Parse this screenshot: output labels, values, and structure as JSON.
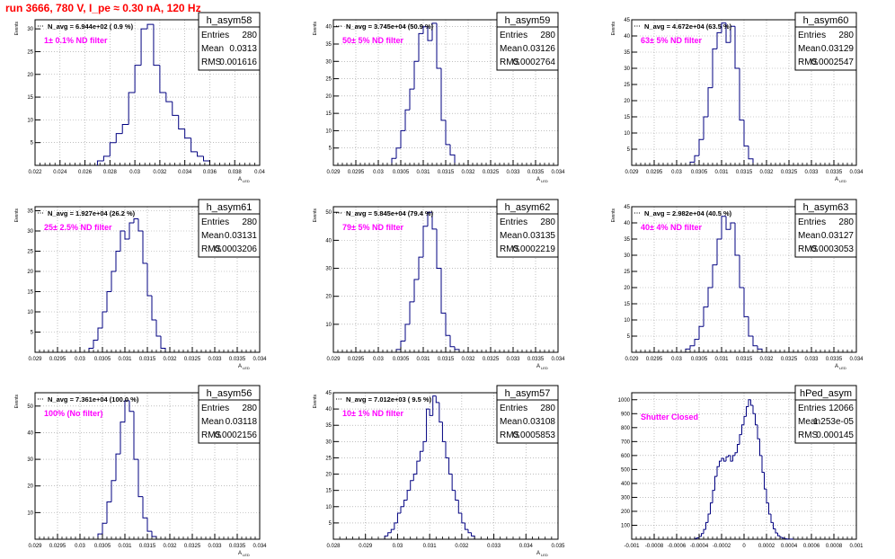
{
  "figure_title": "run 3666,   780 V, I_pe ≈ 0.30 nA, 120 Hz",
  "colors": {
    "title": "#ff0000",
    "histogram": "#000080",
    "annotation": "#ff00ff",
    "axes": "#000000",
    "grid": "#999999"
  },
  "chart_data": [
    {
      "type": "bar",
      "name": "h_asym58",
      "stats": {
        "entries_label": "Entries",
        "entries": "280",
        "mean_label": "Mean",
        "mean": "0.0313",
        "rms_label": "RMS",
        "rms": "0.001616"
      },
      "navg": "N_avg = 6.944e+02 ( 0.9 %)",
      "filter": "1± 0.1% ND filter",
      "ylabel": "Events",
      "xlabel": "A",
      "xlabel_sub": "LED",
      "grid": true,
      "xlim": [
        0.022,
        0.04
      ],
      "ylim": [
        0,
        32
      ],
      "xticks": [
        0.022,
        0.024,
        0.026,
        0.028,
        0.03,
        0.032,
        0.034,
        0.036,
        0.038,
        0.04
      ],
      "xtick_labels": [
        "0.022",
        "0.024",
        "0.026",
        "0.028",
        "0.03",
        "0.032",
        "0.034",
        "0.036",
        "0.038",
        "0.04"
      ],
      "yticks": [
        5,
        10,
        15,
        20,
        25,
        30
      ],
      "ytick_labels": [
        "5",
        "10",
        "15",
        "20",
        "25",
        "30"
      ],
      "bin_edges": [
        0.027,
        0.0275,
        0.028,
        0.0285,
        0.029,
        0.0295,
        0.03,
        0.0305,
        0.031,
        0.0315,
        0.032,
        0.0325,
        0.033,
        0.0335,
        0.034,
        0.0345,
        0.035,
        0.0355,
        0.036
      ],
      "counts": [
        1,
        2,
        5,
        7,
        9,
        16,
        22,
        30,
        31,
        22,
        16,
        14,
        11,
        8,
        6,
        3,
        2,
        1
      ]
    },
    {
      "type": "bar",
      "name": "h_asym59",
      "stats": {
        "entries_label": "Entries",
        "entries": "280",
        "mean_label": "Mean",
        "mean": "0.03126",
        "rms_label": "RMS",
        "rms": "0.0002764"
      },
      "navg": "N_avg = 3.745e+04 (50.9 %)",
      "filter": "50± 5% ND filter",
      "ylabel": "Events",
      "xlabel": "A",
      "xlabel_sub": "LED",
      "grid": true,
      "xlim": [
        0.029,
        0.034
      ],
      "ylim": [
        0,
        42
      ],
      "xticks": [
        0.029,
        0.0295,
        0.03,
        0.0305,
        0.031,
        0.0315,
        0.032,
        0.0325,
        0.033,
        0.0335,
        0.034
      ],
      "xtick_labels": [
        "0.029",
        "0.0295",
        "0.03",
        "0.0305",
        "0.031",
        "0.0315",
        "0.032",
        "0.0325",
        "0.033",
        "0.0335",
        "0.034"
      ],
      "yticks": [
        5,
        10,
        15,
        20,
        25,
        30,
        35,
        40
      ],
      "ytick_labels": [
        "5",
        "10",
        "15",
        "20",
        "25",
        "30",
        "35",
        "40"
      ],
      "bin_edges": [
        0.0303,
        0.0304,
        0.0305,
        0.0306,
        0.0307,
        0.0308,
        0.0309,
        0.031,
        0.0311,
        0.0312,
        0.0313,
        0.0314,
        0.0315,
        0.0316,
        0.0317
      ],
      "counts": [
        2,
        5,
        10,
        16,
        22,
        30,
        38,
        40,
        36,
        41,
        28,
        13,
        6,
        3
      ]
    },
    {
      "type": "bar",
      "name": "h_asym60",
      "stats": {
        "entries_label": "Entries",
        "entries": "280",
        "mean_label": "Mean",
        "mean": "0.03129",
        "rms_label": "RMS",
        "rms": "0.0002547"
      },
      "navg": "N_avg = 4.672e+04 (63.5 %)",
      "filter": "63± 5% ND filter",
      "ylabel": "Events",
      "xlabel": "A",
      "xlabel_sub": "LED",
      "grid": true,
      "xlim": [
        0.029,
        0.034
      ],
      "ylim": [
        0,
        45
      ],
      "xticks": [
        0.029,
        0.0295,
        0.03,
        0.0305,
        0.031,
        0.0315,
        0.032,
        0.0325,
        0.033,
        0.0335,
        0.034
      ],
      "xtick_labels": [
        "0.029",
        "0.0295",
        "0.03",
        "0.0305",
        "0.031",
        "0.0315",
        "0.032",
        "0.0325",
        "0.033",
        "0.0335",
        "0.034"
      ],
      "yticks": [
        5,
        10,
        15,
        20,
        25,
        30,
        35,
        40,
        45
      ],
      "ytick_labels": [
        "5",
        "10",
        "15",
        "20",
        "25",
        "30",
        "35",
        "40",
        "45"
      ],
      "bin_edges": [
        0.0303,
        0.0304,
        0.0305,
        0.0306,
        0.0307,
        0.0308,
        0.0309,
        0.031,
        0.0311,
        0.0312,
        0.0313,
        0.0314,
        0.0315,
        0.0316,
        0.0317
      ],
      "counts": [
        1,
        3,
        8,
        15,
        24,
        36,
        41,
        44,
        38,
        43,
        30,
        14,
        6,
        2
      ]
    },
    {
      "type": "bar",
      "name": "h_asym61",
      "stats": {
        "entries_label": "Entries",
        "entries": "280",
        "mean_label": "Mean",
        "mean": "0.03131",
        "rms_label": "RMS",
        "rms": "0.0003206"
      },
      "navg": "N_avg = 1.927e+04 (26.2 %)",
      "filter": "25± 2.5% ND filter",
      "ylabel": "Events",
      "xlabel": "A",
      "xlabel_sub": "LED",
      "grid": true,
      "xlim": [
        0.029,
        0.034
      ],
      "ylim": [
        0,
        36
      ],
      "xticks": [
        0.029,
        0.0295,
        0.03,
        0.0305,
        0.031,
        0.0315,
        0.032,
        0.0325,
        0.033,
        0.0335,
        0.034
      ],
      "xtick_labels": [
        "0.029",
        "0.0295",
        "0.03",
        "0.0305",
        "0.031",
        "0.0315",
        "0.032",
        "0.0325",
        "0.033",
        "0.0335",
        "0.034"
      ],
      "yticks": [
        5,
        10,
        15,
        20,
        25,
        30,
        35
      ],
      "ytick_labels": [
        "5",
        "10",
        "15",
        "20",
        "25",
        "30",
        "35"
      ],
      "bin_edges": [
        0.0302,
        0.0303,
        0.0304,
        0.0305,
        0.0306,
        0.0307,
        0.0308,
        0.0309,
        0.031,
        0.0311,
        0.0312,
        0.0313,
        0.0314,
        0.0315,
        0.0316,
        0.0317,
        0.0318,
        0.0319
      ],
      "counts": [
        1,
        3,
        6,
        10,
        15,
        20,
        25,
        30,
        28,
        32,
        33,
        30,
        22,
        14,
        8,
        4,
        1
      ]
    },
    {
      "type": "bar",
      "name": "h_asym62",
      "stats": {
        "entries_label": "Entries",
        "entries": "280",
        "mean_label": "Mean",
        "mean": "0.03135",
        "rms_label": "RMS",
        "rms": "0.0002219"
      },
      "navg": "N_avg = 5.845e+04 (79.4 %)",
      "filter": "79± 5% ND filter",
      "ylabel": "Events",
      "xlabel": "A",
      "xlabel_sub": "LED",
      "grid": true,
      "xlim": [
        0.029,
        0.034
      ],
      "ylim": [
        0,
        52
      ],
      "xticks": [
        0.029,
        0.0295,
        0.03,
        0.0305,
        0.031,
        0.0315,
        0.032,
        0.0325,
        0.033,
        0.0335,
        0.034
      ],
      "xtick_labels": [
        "0.029",
        "0.0295",
        "0.03",
        "0.0305",
        "0.031",
        "0.0315",
        "0.032",
        "0.0325",
        "0.033",
        "0.0335",
        "0.034"
      ],
      "yticks": [
        10,
        20,
        30,
        40,
        50
      ],
      "ytick_labels": [
        "10",
        "20",
        "30",
        "40",
        "50"
      ],
      "bin_edges": [
        0.0304,
        0.0305,
        0.0306,
        0.0307,
        0.0308,
        0.0309,
        0.031,
        0.0311,
        0.0312,
        0.0313,
        0.0314,
        0.0315,
        0.0316,
        0.0317,
        0.0318
      ],
      "counts": [
        1,
        4,
        10,
        18,
        26,
        34,
        45,
        50,
        44,
        30,
        14,
        6,
        2,
        1
      ]
    },
    {
      "type": "bar",
      "name": "h_asym63",
      "stats": {
        "entries_label": "Entries",
        "entries": "280",
        "mean_label": "Mean",
        "mean": "0.03127",
        "rms_label": "RMS",
        "rms": "0.0003053"
      },
      "navg": "N_avg = 2.982e+04 (40.5 %)",
      "filter": "40± 4% ND filter",
      "ylabel": "Events",
      "xlabel": "A",
      "xlabel_sub": "LED",
      "grid": true,
      "xlim": [
        0.029,
        0.034
      ],
      "ylim": [
        0,
        45
      ],
      "xticks": [
        0.029,
        0.0295,
        0.03,
        0.0305,
        0.031,
        0.0315,
        0.032,
        0.0325,
        0.033,
        0.0335,
        0.034
      ],
      "xtick_labels": [
        "0.029",
        "0.0295",
        "0.03",
        "0.0305",
        "0.031",
        "0.0315",
        "0.032",
        "0.0325",
        "0.033",
        "0.0335",
        "0.034"
      ],
      "yticks": [
        5,
        10,
        15,
        20,
        25,
        30,
        35,
        40,
        45
      ],
      "ytick_labels": [
        "5",
        "10",
        "15",
        "20",
        "25",
        "30",
        "35",
        "40",
        "45"
      ],
      "bin_edges": [
        0.0302,
        0.0303,
        0.0304,
        0.0305,
        0.0306,
        0.0307,
        0.0308,
        0.0309,
        0.031,
        0.0311,
        0.0312,
        0.0313,
        0.0314,
        0.0315,
        0.0316,
        0.0317,
        0.0318,
        0.0319
      ],
      "counts": [
        1,
        2,
        4,
        8,
        14,
        20,
        27,
        35,
        42,
        38,
        40,
        30,
        20,
        11,
        5,
        2,
        1
      ]
    },
    {
      "type": "bar",
      "name": "h_asym56",
      "stats": {
        "entries_label": "Entries",
        "entries": "280",
        "mean_label": "Mean",
        "mean": "0.03118",
        "rms_label": "RMS",
        "rms": "0.0002156"
      },
      "navg": "N_avg = 7.361e+04 (100.0 %)",
      "filter": "100% (No filter)",
      "ylabel": "Events",
      "xlabel": "A",
      "xlabel_sub": "LED",
      "grid": true,
      "xlim": [
        0.029,
        0.034
      ],
      "ylim": [
        0,
        55
      ],
      "xticks": [
        0.029,
        0.0295,
        0.03,
        0.0305,
        0.031,
        0.0315,
        0.032,
        0.0325,
        0.033,
        0.0335,
        0.034
      ],
      "xtick_labels": [
        "0.029",
        "0.0295",
        "0.03",
        "0.0305",
        "0.031",
        "0.0315",
        "0.032",
        "0.0325",
        "0.033",
        "0.0335",
        "0.034"
      ],
      "yticks": [
        10,
        20,
        30,
        40,
        50
      ],
      "ytick_labels": [
        "10",
        "20",
        "30",
        "40",
        "50"
      ],
      "bin_edges": [
        0.0304,
        0.0305,
        0.0306,
        0.0307,
        0.0308,
        0.0309,
        0.031,
        0.0311,
        0.0312,
        0.0313,
        0.0314,
        0.0315,
        0.0316,
        0.0317
      ],
      "counts": [
        2,
        6,
        14,
        22,
        32,
        44,
        52,
        48,
        30,
        16,
        8,
        3,
        1
      ]
    },
    {
      "type": "bar",
      "name": "h_asym57",
      "stats": {
        "entries_label": "Entries",
        "entries": "280",
        "mean_label": "Mean",
        "mean": "0.03108",
        "rms_label": "RMS",
        "rms": "0.0005853"
      },
      "navg": "N_avg = 7.012e+03 ( 9.5 %)",
      "filter": "10± 1% ND filter",
      "ylabel": "Events",
      "xlabel": "A",
      "xlabel_sub": "LED",
      "grid": true,
      "xlim": [
        0.028,
        0.035
      ],
      "ylim": [
        0,
        45
      ],
      "xticks": [
        0.028,
        0.029,
        0.03,
        0.031,
        0.032,
        0.033,
        0.034,
        0.035
      ],
      "xtick_labels": [
        "0.028",
        "0.029",
        "0.03",
        "0.031",
        "0.032",
        "0.033",
        "0.034",
        "0.035"
      ],
      "yticks": [
        5,
        10,
        15,
        20,
        25,
        30,
        35,
        40,
        45
      ],
      "ytick_labels": [
        "5",
        "10",
        "15",
        "20",
        "25",
        "30",
        "35",
        "40",
        "45"
      ],
      "bin_edges": [
        0.0296,
        0.0297,
        0.0298,
        0.0299,
        0.03,
        0.0301,
        0.0302,
        0.0303,
        0.0304,
        0.0305,
        0.0306,
        0.0307,
        0.0308,
        0.0309,
        0.031,
        0.0311,
        0.0312,
        0.0313,
        0.0314,
        0.0315,
        0.0316,
        0.0317,
        0.0318,
        0.0319,
        0.032,
        0.0321,
        0.0322,
        0.0323,
        0.0324
      ],
      "counts": [
        1,
        2,
        3,
        5,
        8,
        10,
        12,
        15,
        18,
        20,
        24,
        27,
        30,
        40,
        38,
        44,
        42,
        36,
        30,
        25,
        20,
        15,
        12,
        8,
        5,
        3,
        2,
        1
      ]
    },
    {
      "type": "bar",
      "name": "hPed_asym",
      "stats": {
        "entries_label": "Entries",
        "entries": "12066",
        "mean_label": "Mean",
        "mean": "1.253e-05",
        "rms_label": "RMS",
        "rms": "0.000145"
      },
      "navg": "",
      "filter": "Shutter Closed",
      "ylabel": "",
      "xlabel": "",
      "xlabel_sub": "",
      "grid": true,
      "xlim": [
        -0.001,
        0.001
      ],
      "ylim": [
        0,
        1050
      ],
      "xticks": [
        -0.001,
        -0.0008,
        -0.0006,
        -0.0004,
        -0.0002,
        0,
        0.0002,
        0.0004,
        0.0006,
        0.0008,
        0.001
      ],
      "xtick_labels": [
        "-0.001",
        "-0.0008",
        "-0.0006",
        "-0.0004",
        "-0.0002",
        "0",
        "0.0002",
        "0.0004",
        "0.0006",
        "0.0008",
        "0.001"
      ],
      "yticks": [
        100,
        200,
        300,
        400,
        500,
        600,
        700,
        800,
        900,
        1000
      ],
      "ytick_labels": [
        "100",
        "200",
        "300",
        "400",
        "500",
        "600",
        "700",
        "800",
        "900",
        "1000"
      ],
      "bin_edges": [
        -0.00044,
        -0.00042,
        -0.0004,
        -0.00038,
        -0.00036,
        -0.00034,
        -0.00032,
        -0.0003,
        -0.00028,
        -0.00026,
        -0.00024,
        -0.00022,
        -0.0002,
        -0.00018,
        -0.00016,
        -0.00014,
        -0.00012,
        -0.0001,
        -8e-05,
        -6e-05,
        -4e-05,
        -2e-05,
        0.0,
        2e-05,
        4e-05,
        6e-05,
        8e-05,
        0.0001,
        0.00012,
        0.00014,
        0.00016,
        0.00018,
        0.0002,
        0.00022,
        0.00024,
        0.00026,
        0.00028,
        0.0003,
        0.00032,
        0.00034,
        0.00036,
        0.00038,
        0.0004,
        0.00042,
        0.00044
      ],
      "counts": [
        5,
        10,
        20,
        40,
        70,
        120,
        180,
        260,
        350,
        450,
        520,
        560,
        580,
        560,
        590,
        600,
        560,
        600,
        620,
        680,
        750,
        820,
        880,
        950,
        1000,
        960,
        900,
        820,
        720,
        600,
        480,
        360,
        260,
        180,
        120,
        75,
        45,
        25,
        14,
        8,
        4,
        2,
        1,
        1
      ]
    }
  ]
}
